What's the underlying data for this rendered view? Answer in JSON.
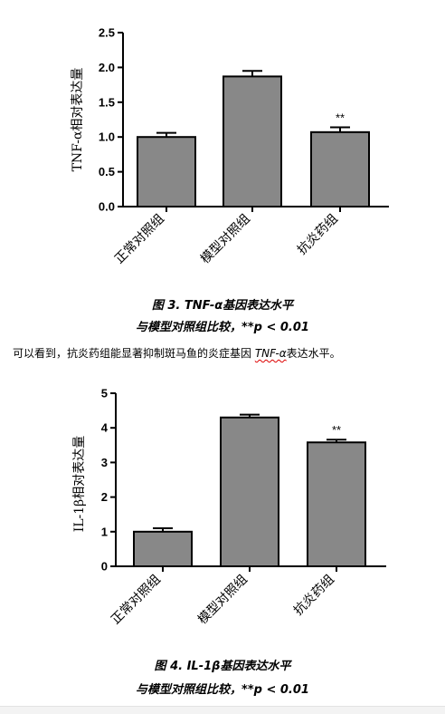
{
  "chart_data": [
    {
      "type": "bar",
      "categories": [
        "正常对照组",
        "模型对照组",
        "抗炎药组"
      ],
      "values": [
        1.0,
        1.87,
        1.07
      ],
      "errors": [
        0.06,
        0.08,
        0.07
      ],
      "significance": [
        "",
        "",
        "**"
      ],
      "ylabel": "TNF-α相对表达量",
      "ylim": [
        0,
        2.5
      ],
      "yticks": [
        "0.0",
        "0.5",
        "1.0",
        "1.5",
        "2.0",
        "2.5"
      ],
      "bar_color": "#888888",
      "grid": false
    },
    {
      "type": "bar",
      "categories": [
        "正常对照组",
        "模型对照组",
        "抗炎药组"
      ],
      "values": [
        1.0,
        4.3,
        3.58
      ],
      "errors": [
        0.1,
        0.08,
        0.08
      ],
      "significance": [
        "",
        "",
        "**"
      ],
      "ylabel": "IL-1β相对表达量",
      "ylim": [
        0,
        5
      ],
      "yticks": [
        "0",
        "1",
        "2",
        "3",
        "4",
        "5"
      ],
      "bar_color": "#888888",
      "grid": false
    }
  ],
  "captions": {
    "fig3_line1": "图 3. TNF-α基因表达水平",
    "fig3_line2": "与模型对照组比较，**p < 0.01",
    "fig4_line1": "图 4. IL-1β基因表达水平",
    "fig4_line2": "与模型对照组比较，**p < 0.01"
  },
  "paragraph": {
    "before": "可以看到，抗炎药组能显著抑制斑马鱼的炎症基因 ",
    "gene": "TNF-α",
    "after": "表达水平。"
  }
}
